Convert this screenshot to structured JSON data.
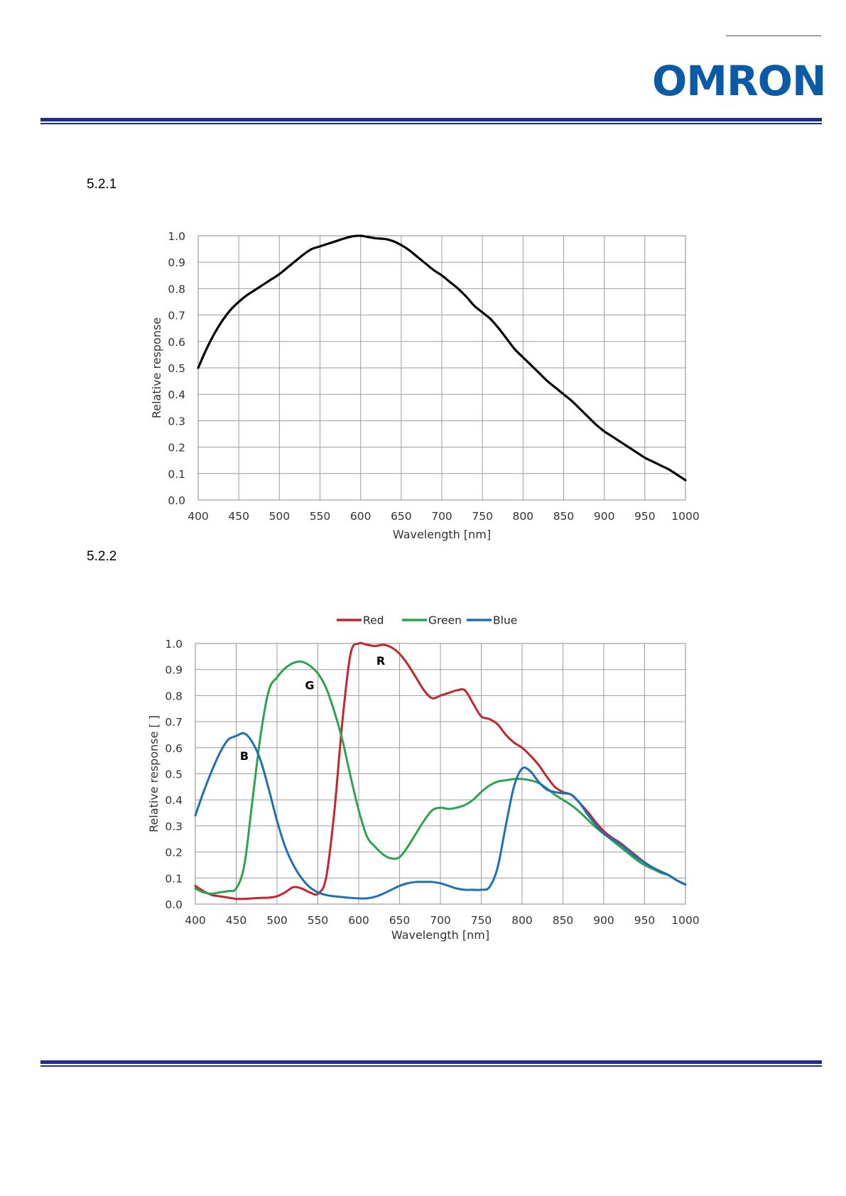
{
  "header": {
    "brand": "OMRON",
    "brand_color": "#0b5aa6",
    "rule_color": "#1f2c8f"
  },
  "sections": [
    {
      "number": "5.2.1"
    },
    {
      "number": "5.2.2"
    }
  ],
  "chart_data": [
    {
      "type": "line",
      "xlabel": "Wavelength  [nm]",
      "ylabel": "Relative  response",
      "xlim": [
        400,
        1000
      ],
      "ylim": [
        0,
        1.0
      ],
      "x_ticks": [
        "400",
        "450",
        "500",
        "550",
        "600",
        "650",
        "700",
        "750",
        "800",
        "850",
        "900",
        "950",
        "1000"
      ],
      "y_ticks": [
        "0.0",
        "0.1",
        "0.2",
        "0.3",
        "0.4",
        "0.5",
        "0.6",
        "0.7",
        "0.8",
        "0.9",
        "1.0"
      ],
      "grid": true,
      "series": [
        {
          "color": "#000000",
          "x": [
            400,
            410,
            420,
            430,
            440,
            450,
            460,
            470,
            480,
            490,
            500,
            510,
            520,
            530,
            540,
            550,
            560,
            570,
            580,
            590,
            600,
            610,
            620,
            630,
            640,
            650,
            660,
            670,
            680,
            690,
            700,
            710,
            720,
            730,
            740,
            750,
            760,
            770,
            780,
            790,
            800,
            810,
            820,
            830,
            840,
            850,
            860,
            870,
            880,
            890,
            900,
            910,
            920,
            930,
            940,
            950,
            960,
            970,
            980,
            990,
            1000
          ],
          "y": [
            0.5,
            0.57,
            0.63,
            0.68,
            0.72,
            0.75,
            0.775,
            0.795,
            0.815,
            0.835,
            0.855,
            0.88,
            0.905,
            0.93,
            0.95,
            0.96,
            0.97,
            0.98,
            0.99,
            0.998,
            1.0,
            0.995,
            0.99,
            0.988,
            0.98,
            0.965,
            0.945,
            0.92,
            0.895,
            0.87,
            0.85,
            0.825,
            0.8,
            0.77,
            0.735,
            0.71,
            0.685,
            0.65,
            0.61,
            0.57,
            0.54,
            0.51,
            0.48,
            0.45,
            0.425,
            0.4,
            0.375,
            0.345,
            0.315,
            0.285,
            0.26,
            0.24,
            0.22,
            0.2,
            0.18,
            0.16,
            0.145,
            0.13,
            0.115,
            0.095,
            0.075
          ]
        }
      ]
    },
    {
      "type": "line",
      "xlabel": "Wavelength [nm]",
      "ylabel": "Relative response [ ]",
      "xlim": [
        400,
        1000
      ],
      "ylim": [
        0,
        1.0
      ],
      "x_ticks": [
        "400",
        "450",
        "500",
        "550",
        "600",
        "650",
        "700",
        "750",
        "800",
        "850",
        "900",
        "950",
        "1000"
      ],
      "y_ticks": [
        "0.0",
        "0.1",
        "0.2",
        "0.3",
        "0.4",
        "0.5",
        "0.6",
        "0.7",
        "0.8",
        "0.9",
        "1.0"
      ],
      "grid": true,
      "legend": "top",
      "annotations": [
        {
          "text": "R",
          "x": 627,
          "y": 0.935
        },
        {
          "text": "G",
          "x": 540,
          "y": 0.84
        },
        {
          "text": "B",
          "x": 460,
          "y": 0.57
        }
      ],
      "series": [
        {
          "name": "Red",
          "color": "#c1272d",
          "x": [
            400,
            410,
            420,
            430,
            440,
            450,
            460,
            470,
            480,
            490,
            500,
            510,
            520,
            530,
            540,
            550,
            560,
            570,
            580,
            590,
            600,
            610,
            620,
            630,
            640,
            650,
            660,
            670,
            680,
            690,
            700,
            710,
            720,
            730,
            740,
            750,
            760,
            770,
            780,
            790,
            800,
            810,
            820,
            830,
            840,
            850,
            860,
            870,
            880,
            890,
            900,
            910,
            920,
            930,
            940,
            950,
            960,
            970,
            980,
            990,
            1000
          ],
          "y": [
            0.07,
            0.05,
            0.035,
            0.03,
            0.025,
            0.02,
            0.02,
            0.022,
            0.024,
            0.025,
            0.03,
            0.045,
            0.065,
            0.06,
            0.045,
            0.04,
            0.1,
            0.35,
            0.7,
            0.96,
            1.0,
            0.995,
            0.99,
            0.995,
            0.985,
            0.96,
            0.92,
            0.87,
            0.82,
            0.79,
            0.8,
            0.81,
            0.82,
            0.82,
            0.77,
            0.72,
            0.71,
            0.69,
            0.65,
            0.62,
            0.6,
            0.57,
            0.535,
            0.49,
            0.45,
            0.43,
            0.42,
            0.39,
            0.355,
            0.315,
            0.28,
            0.255,
            0.235,
            0.21,
            0.185,
            0.16,
            0.14,
            0.125,
            0.11,
            0.09,
            0.075
          ]
        },
        {
          "name": "Green",
          "color": "#2ca34f",
          "x": [
            400,
            410,
            420,
            430,
            440,
            450,
            460,
            470,
            480,
            490,
            500,
            510,
            520,
            530,
            540,
            550,
            560,
            570,
            580,
            590,
            600,
            610,
            620,
            630,
            640,
            650,
            660,
            670,
            680,
            690,
            700,
            710,
            720,
            730,
            740,
            750,
            760,
            770,
            780,
            790,
            800,
            810,
            820,
            830,
            840,
            850,
            860,
            870,
            880,
            890,
            900,
            910,
            920,
            930,
            940,
            950,
            960,
            970,
            980,
            990,
            1000
          ],
          "y": [
            0.06,
            0.045,
            0.04,
            0.045,
            0.05,
            0.06,
            0.15,
            0.4,
            0.65,
            0.82,
            0.87,
            0.905,
            0.925,
            0.93,
            0.915,
            0.885,
            0.83,
            0.74,
            0.63,
            0.49,
            0.36,
            0.26,
            0.22,
            0.19,
            0.175,
            0.18,
            0.22,
            0.27,
            0.32,
            0.36,
            0.37,
            0.365,
            0.37,
            0.38,
            0.4,
            0.43,
            0.455,
            0.47,
            0.475,
            0.48,
            0.48,
            0.475,
            0.465,
            0.445,
            0.42,
            0.4,
            0.38,
            0.355,
            0.325,
            0.295,
            0.27,
            0.245,
            0.22,
            0.195,
            0.17,
            0.15,
            0.135,
            0.12,
            0.11,
            0.09,
            0.075
          ]
        },
        {
          "name": "Blue",
          "color": "#1f6fb3",
          "x": [
            400,
            410,
            420,
            430,
            440,
            450,
            460,
            470,
            480,
            490,
            500,
            510,
            520,
            530,
            540,
            550,
            560,
            570,
            580,
            590,
            600,
            610,
            620,
            630,
            640,
            650,
            660,
            670,
            680,
            690,
            700,
            710,
            720,
            730,
            740,
            750,
            760,
            770,
            780,
            790,
            800,
            810,
            820,
            830,
            840,
            850,
            860,
            870,
            880,
            890,
            900,
            910,
            920,
            930,
            940,
            950,
            960,
            970,
            980,
            990,
            1000
          ],
          "y": [
            0.34,
            0.43,
            0.51,
            0.58,
            0.63,
            0.645,
            0.655,
            0.62,
            0.55,
            0.44,
            0.32,
            0.22,
            0.15,
            0.1,
            0.065,
            0.045,
            0.035,
            0.03,
            0.027,
            0.024,
            0.022,
            0.022,
            0.028,
            0.04,
            0.055,
            0.07,
            0.08,
            0.085,
            0.085,
            0.085,
            0.08,
            0.07,
            0.06,
            0.055,
            0.055,
            0.055,
            0.065,
            0.14,
            0.3,
            0.45,
            0.52,
            0.51,
            0.47,
            0.44,
            0.43,
            0.425,
            0.42,
            0.39,
            0.345,
            0.305,
            0.27,
            0.25,
            0.23,
            0.205,
            0.18,
            0.16,
            0.14,
            0.125,
            0.11,
            0.09,
            0.075
          ]
        }
      ]
    }
  ]
}
